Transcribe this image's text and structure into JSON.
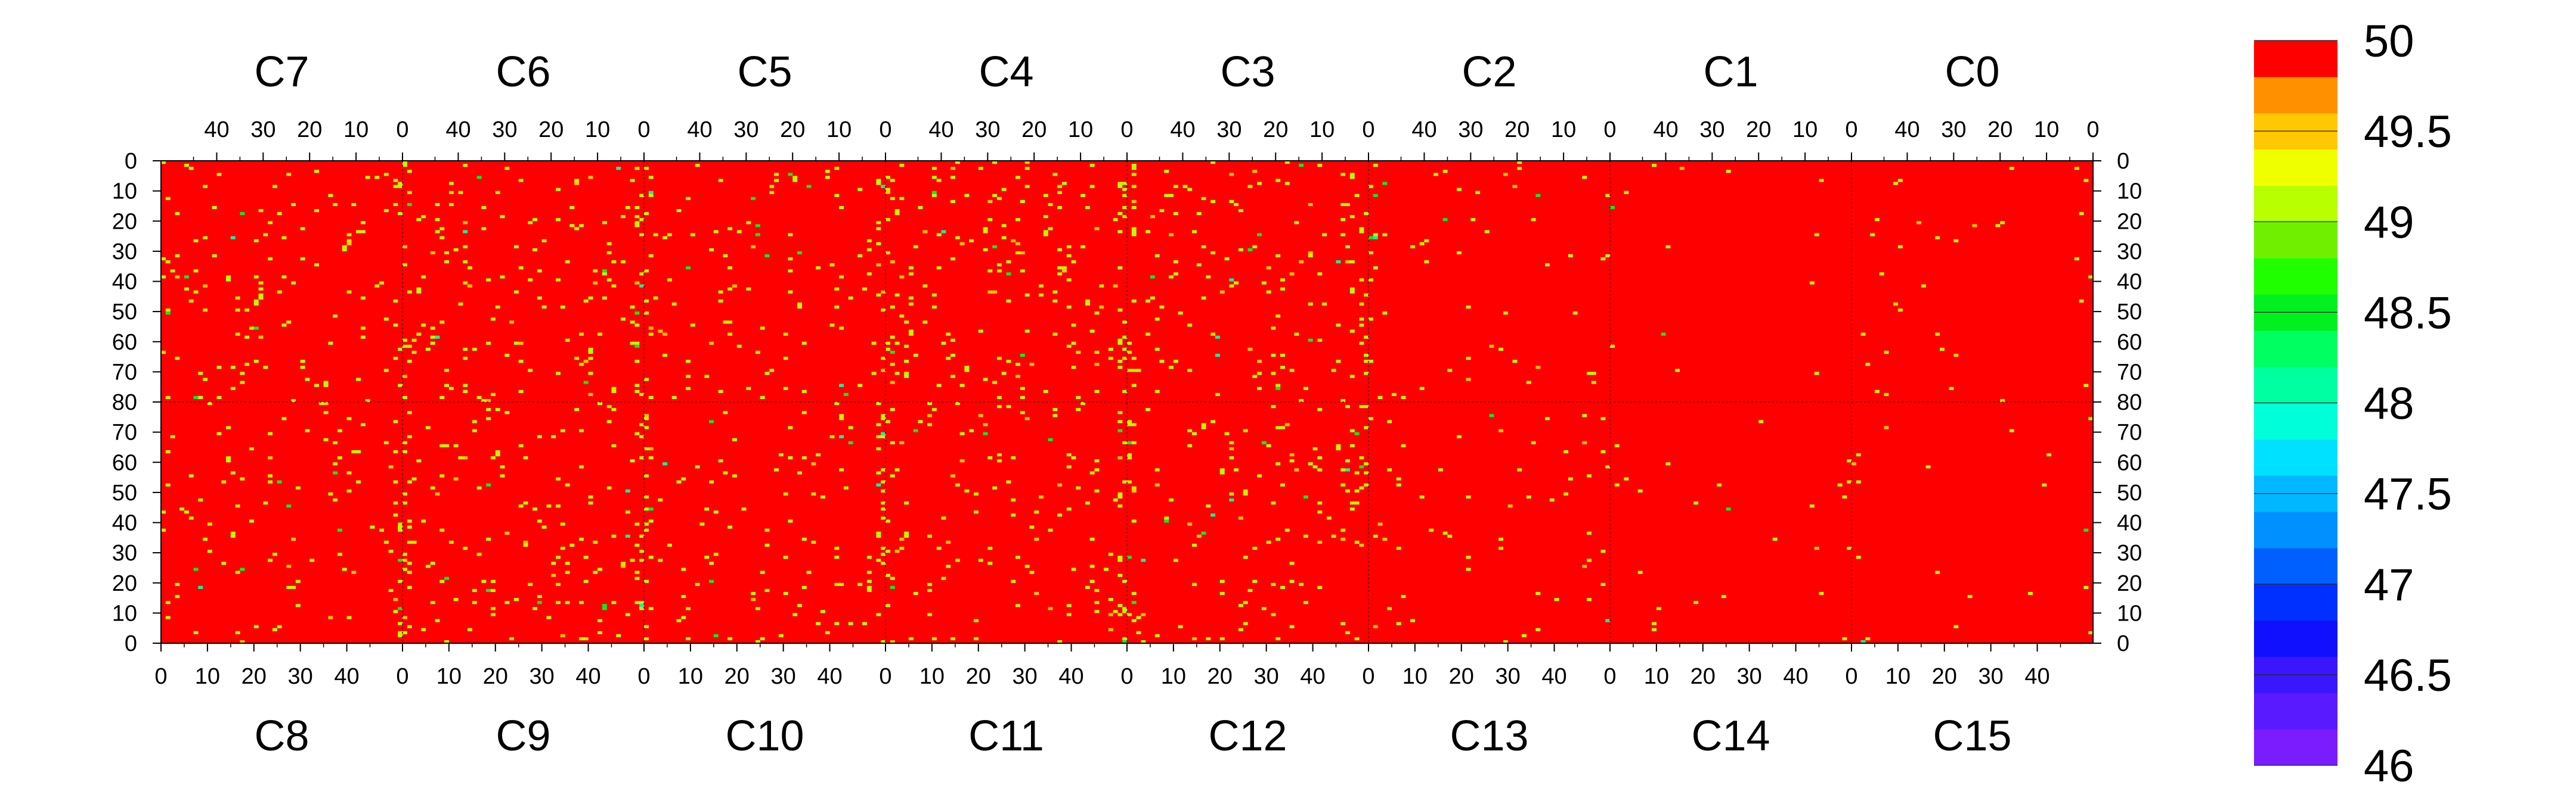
{
  "chart_data": {
    "type": "heatmap",
    "title": "",
    "top_chip_labels": [
      "C7",
      "C6",
      "C5",
      "C4",
      "C3",
      "C2",
      "C1",
      "C0"
    ],
    "bottom_chip_labels": [
      "C8",
      "C9",
      "C10",
      "C11",
      "C12",
      "C13",
      "C14",
      "C15"
    ],
    "top_column_ticks": [
      "40",
      "30",
      "20",
      "10",
      "0"
    ],
    "bottom_column_ticks": [
      "0",
      "10",
      "20",
      "30",
      "40"
    ],
    "row_ticks_top_half": [
      "0",
      "10",
      "20",
      "30",
      "40",
      "50",
      "60",
      "70",
      "80"
    ],
    "row_ticks_bottom_half": [
      "70",
      "60",
      "50",
      "40",
      "30",
      "20",
      "10",
      "0"
    ],
    "columns_per_chip": 52,
    "rows_per_half": 80,
    "colorbar": {
      "min": 46,
      "max": 50,
      "ticks": [
        "46",
        "46.5",
        "47",
        "47.5",
        "48",
        "48.5",
        "49",
        "49.5",
        "50"
      ],
      "tick_values": [
        46,
        46.5,
        47,
        47.5,
        48,
        48.5,
        49,
        49.5,
        50
      ],
      "levels": 20,
      "palette_bottom_to_top": [
        "#7a1cff",
        "#5a1aff",
        "#3a16ff",
        "#1010ff",
        "#0030ff",
        "#0060ff",
        "#0090ff",
        "#00b8ff",
        "#00e0ff",
        "#00ffd8",
        "#00ffa0",
        "#00ff60",
        "#00f020",
        "#20ff00",
        "#70f000",
        "#b8ff00",
        "#f0ff00",
        "#ffc800",
        "#ff9000",
        "#ff4800"
      ],
      "top_color": "#ff0000"
    },
    "background_value": 50,
    "outlier_values": [
      49.5,
      49,
      48.5,
      48
    ]
  }
}
